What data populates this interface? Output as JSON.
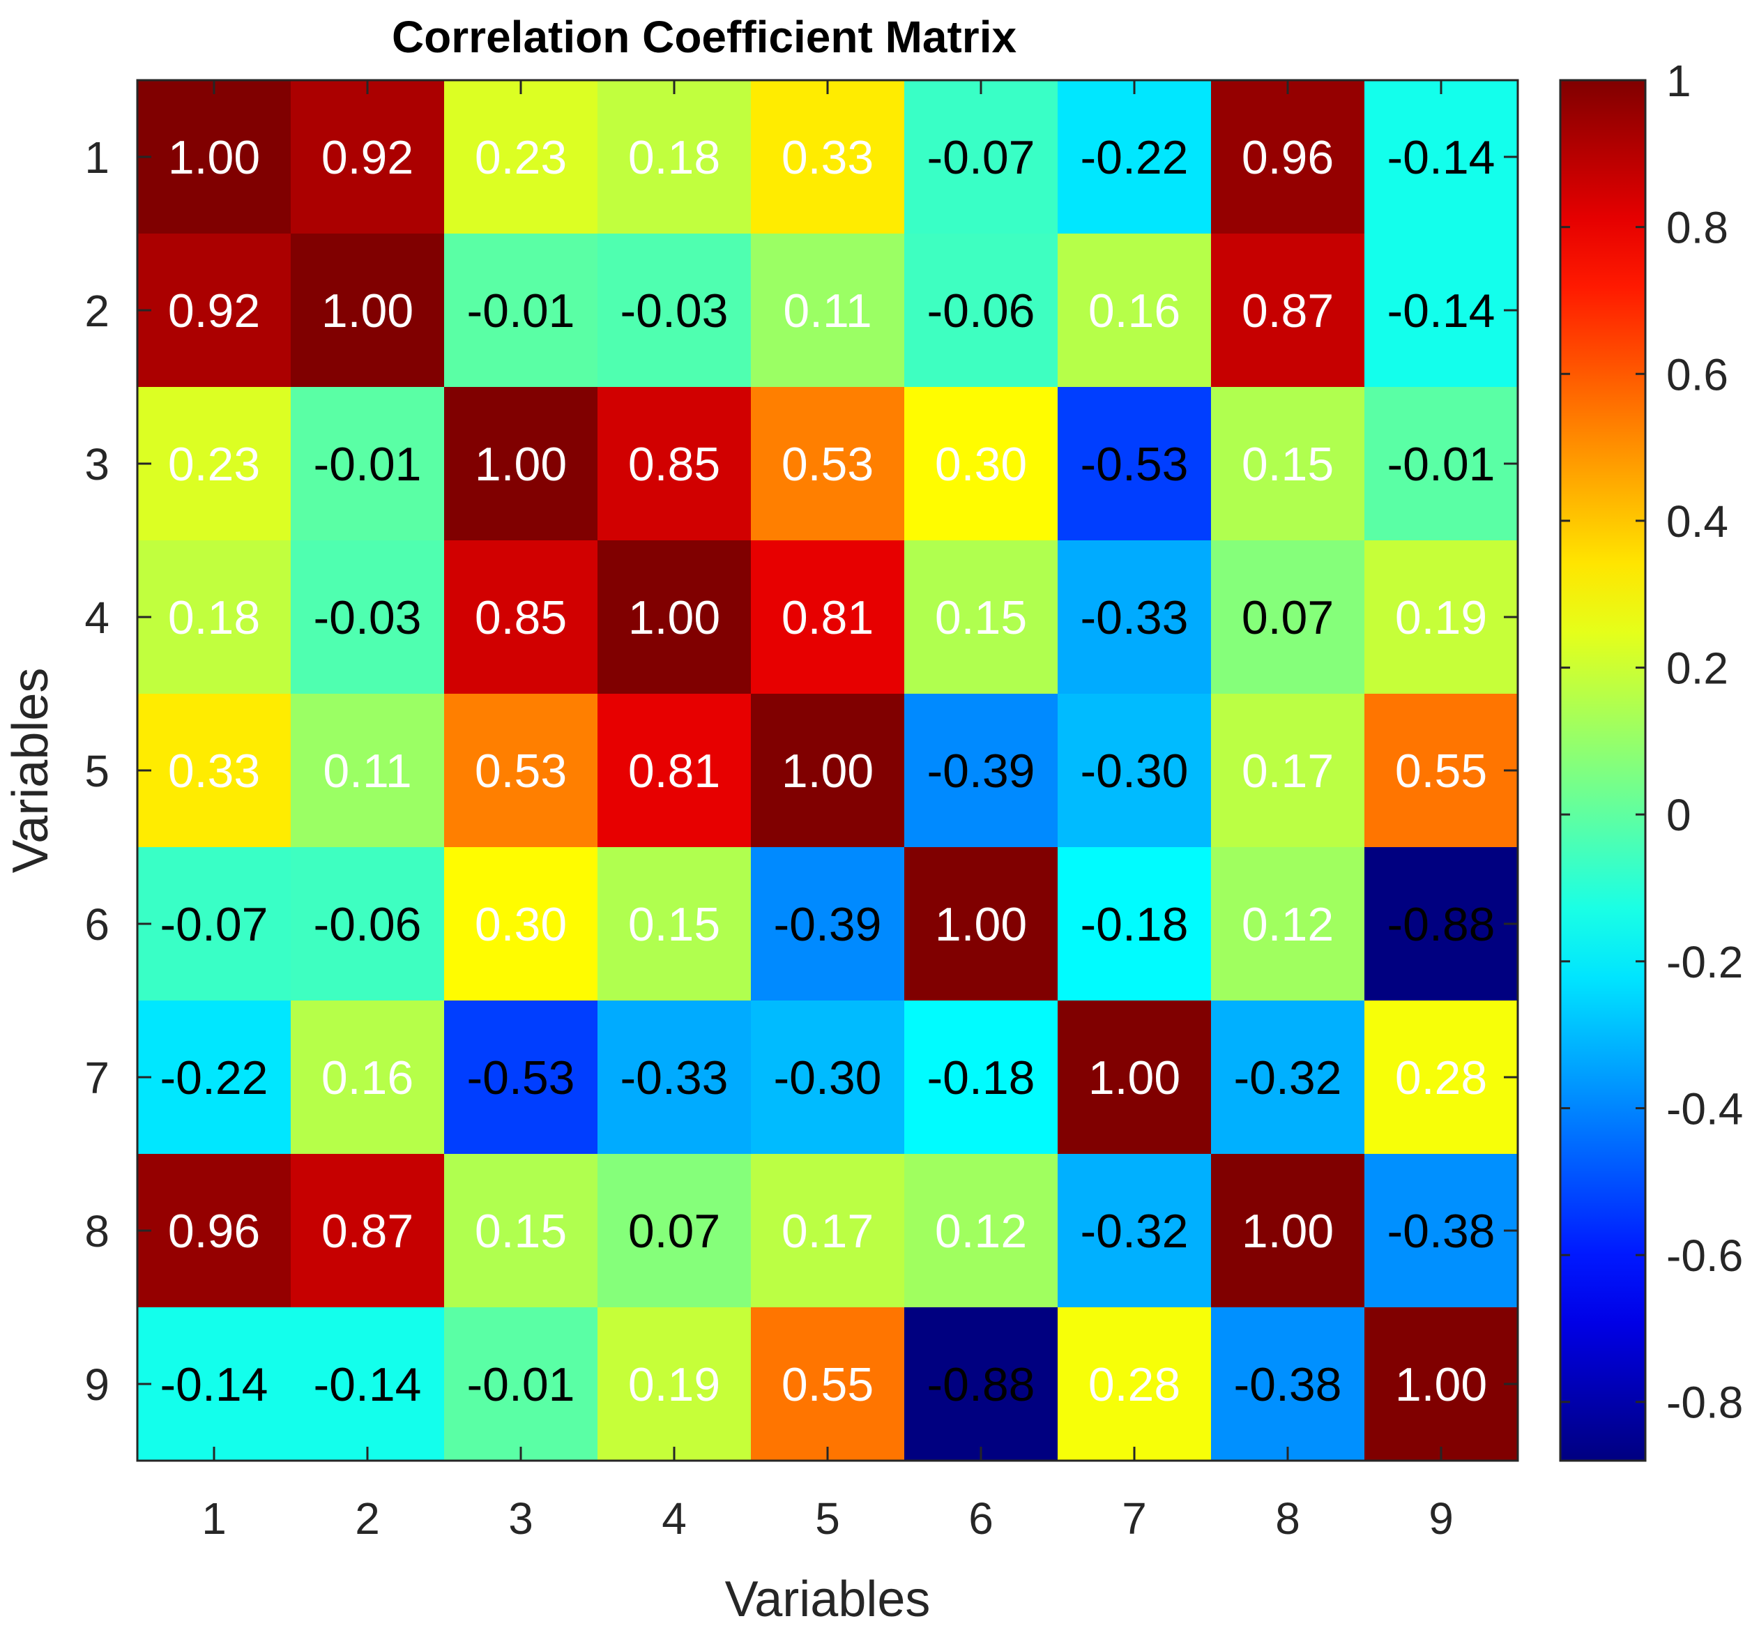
{
  "chart_data": {
    "type": "heatmap",
    "title": "Correlation Coefficient Matrix",
    "xlabel": "Variables",
    "ylabel": "Variables",
    "x_tick_labels": [
      "1",
      "2",
      "3",
      "4",
      "5",
      "6",
      "7",
      "8",
      "9"
    ],
    "y_tick_labels": [
      "1",
      "2",
      "3",
      "4",
      "5",
      "6",
      "7",
      "8",
      "9"
    ],
    "matrix": [
      [
        1.0,
        0.92,
        0.23,
        0.18,
        0.33,
        -0.07,
        -0.22,
        0.96,
        -0.14
      ],
      [
        0.92,
        1.0,
        -0.01,
        -0.03,
        0.11,
        -0.06,
        0.16,
        0.87,
        -0.14
      ],
      [
        0.23,
        -0.01,
        1.0,
        0.85,
        0.53,
        0.3,
        -0.53,
        0.15,
        -0.01
      ],
      [
        0.18,
        -0.03,
        0.85,
        1.0,
        0.81,
        0.15,
        -0.33,
        0.07,
        0.19
      ],
      [
        0.33,
        0.11,
        0.53,
        0.81,
        1.0,
        -0.39,
        -0.3,
        0.17,
        0.55
      ],
      [
        -0.07,
        -0.06,
        0.3,
        0.15,
        -0.39,
        1.0,
        -0.18,
        0.12,
        -0.88
      ],
      [
        -0.22,
        0.16,
        -0.53,
        -0.33,
        -0.3,
        -0.18,
        1.0,
        -0.32,
        0.28
      ],
      [
        0.96,
        0.87,
        0.15,
        0.07,
        0.17,
        0.12,
        -0.32,
        1.0,
        -0.38
      ],
      [
        -0.14,
        -0.14,
        -0.01,
        0.19,
        0.55,
        -0.88,
        0.28,
        -0.38,
        1.0
      ]
    ],
    "colormap": "jet",
    "color_range": [
      -0.88,
      1.0
    ],
    "colorbar_ticks": [
      1,
      0.8,
      0.6,
      0.4,
      0.2,
      0,
      -0.2,
      -0.4,
      -0.6,
      -0.8
    ],
    "colorbar_tick_labels": [
      "1",
      "0.8",
      "0.6",
      "0.4",
      "0.2",
      "0",
      "-0.2",
      "-0.4",
      "-0.6",
      "-0.8"
    ],
    "value_format_decimals": 2
  }
}
